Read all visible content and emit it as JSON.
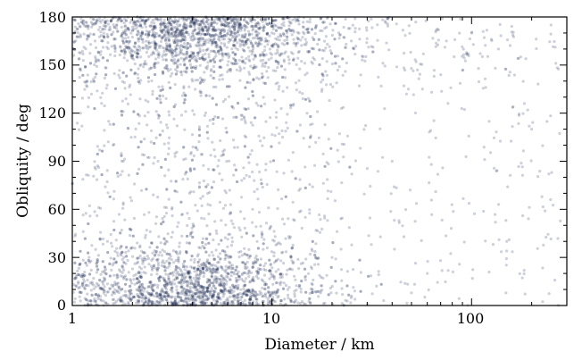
{
  "chart_data": {
    "type": "scatter",
    "xlabel": "Diameter / km",
    "ylabel": "Obliquity / deg",
    "xscale": "log",
    "xlim": [
      1,
      300
    ],
    "ylim": [
      0,
      180
    ],
    "x_major_ticks": [
      1,
      10,
      100
    ],
    "x_tick_labels": [
      "1",
      "10",
      "100"
    ],
    "y_ticks": [
      0,
      30,
      60,
      90,
      120,
      150,
      180
    ],
    "y_tick_labels": [
      "0",
      "30",
      "60",
      "90",
      "120",
      "150",
      "180"
    ],
    "grid": false,
    "legend": "none",
    "tick_direction": "in",
    "point_color": "#1f2f57",
    "point_opacity": 0.22,
    "density_clusters": [
      {
        "x": 4.5,
        "y": 168
      },
      {
        "x": 4.5,
        "y": 12
      }
    ],
    "sample_points": [
      {
        "x": 1.1,
        "y": 120
      },
      {
        "x": 1.15,
        "y": 15
      },
      {
        "x": 1.3,
        "y": 165
      },
      {
        "x": 1.5,
        "y": 40
      },
      {
        "x": 1.8,
        "y": 90
      },
      {
        "x": 2.2,
        "y": 175
      },
      {
        "x": 3.0,
        "y": 160
      },
      {
        "x": 3.5,
        "y": 5
      },
      {
        "x": 4.0,
        "y": 170
      },
      {
        "x": 5.0,
        "y": 20
      },
      {
        "x": 6.0,
        "y": 150
      },
      {
        "x": 8.0,
        "y": 60
      },
      {
        "x": 10.0,
        "y": 170
      },
      {
        "x": 12.0,
        "y": 10
      },
      {
        "x": 15.0,
        "y": 120
      },
      {
        "x": 20.0,
        "y": 30
      },
      {
        "x": 25.0,
        "y": 165
      },
      {
        "x": 40.0,
        "y": 90
      },
      {
        "x": 60.0,
        "y": 20
      },
      {
        "x": 100.0,
        "y": 170
      },
      {
        "x": 150.0,
        "y": 40
      },
      {
        "x": 200.0,
        "y": 110
      },
      {
        "x": 250.0,
        "y": 175
      }
    ]
  }
}
